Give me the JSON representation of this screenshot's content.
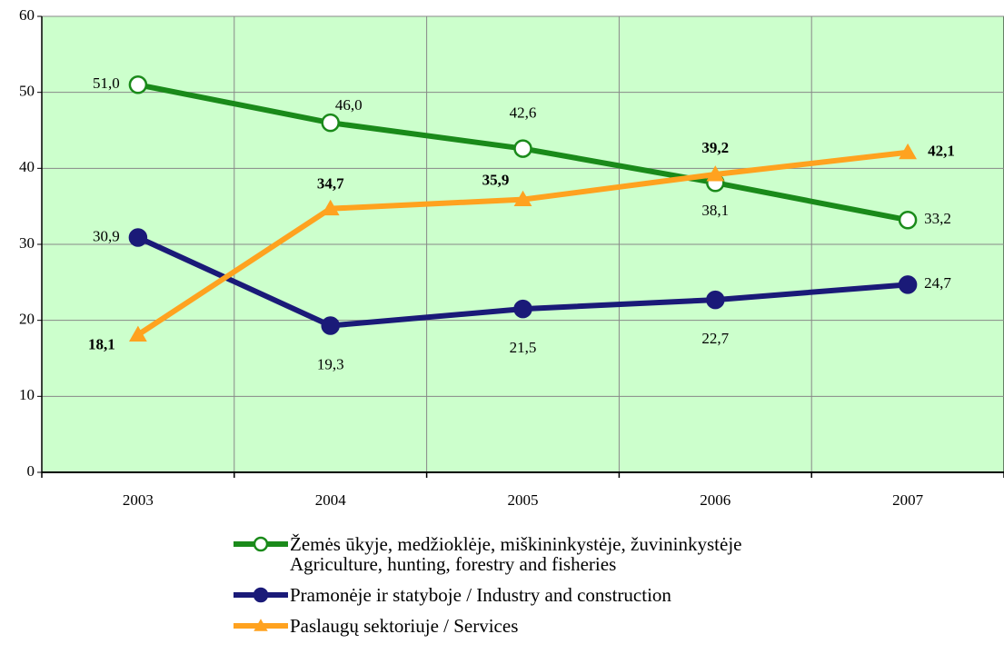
{
  "chart_data": {
    "type": "line",
    "categories": [
      "2003",
      "2004",
      "2005",
      "2006",
      "2007"
    ],
    "series": [
      {
        "name": "Žemės ūkyje, medžioklėje, miškininkystėje, žuvininkystėje\nAgriculture, hunting, forestry and fisheries",
        "color": "#1a8a1a",
        "marker": "open-circle",
        "values": [
          51.0,
          46.0,
          42.6,
          38.1,
          33.2
        ],
        "value_labels": [
          "51,0",
          "46,0",
          "42,6",
          "38,1",
          "33,2"
        ]
      },
      {
        "name": "Pramonėje ir statyboje / Industry and construction",
        "color": "#1a1a78",
        "marker": "circle",
        "values": [
          30.9,
          19.3,
          21.5,
          22.7,
          24.7
        ],
        "value_labels": [
          "30,9",
          "19,3",
          "21,5",
          "22,7",
          "24,7"
        ]
      },
      {
        "name": "Paslaugų sektoriuje / Services",
        "color": "#ffa21f",
        "marker": "triangle",
        "values": [
          18.1,
          34.7,
          35.9,
          39.2,
          42.1
        ],
        "value_labels": [
          "18,1",
          "34,7",
          "35,9",
          "39,2",
          "42,1"
        ]
      }
    ],
    "ylim": [
      0,
      60
    ],
    "yticks": [
      0,
      10,
      20,
      30,
      40,
      50,
      60
    ],
    "grid": true,
    "plot_background": "#ccffcc"
  }
}
